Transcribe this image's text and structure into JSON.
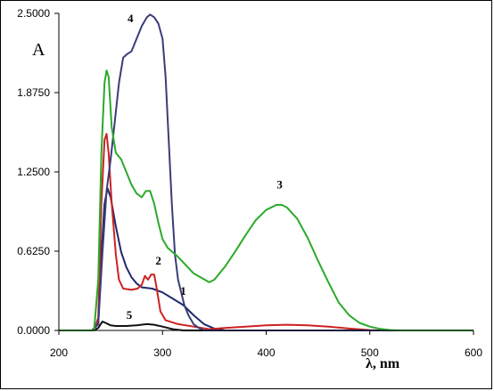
{
  "chart_data": {
    "type": "line",
    "ylabel": "A",
    "xlabel": "λ, nm",
    "xlim": [
      200,
      600
    ],
    "ylim": [
      0,
      2.5
    ],
    "x_ticks": [
      "200",
      "300",
      "400",
      "500",
      "600"
    ],
    "y_ticks": [
      "0.0000",
      "0.6250",
      "1.2500",
      "1.8750",
      "2.5000"
    ],
    "grid": false,
    "series": [
      {
        "name": "1",
        "color": "#1f2a6b",
        "points": [
          [
            200,
            0
          ],
          [
            232,
            0
          ],
          [
            238,
            0.05
          ],
          [
            241,
            0.6
          ],
          [
            244,
            1.0
          ],
          [
            247,
            1.12
          ],
          [
            250,
            1.05
          ],
          [
            255,
            0.82
          ],
          [
            260,
            0.62
          ],
          [
            265,
            0.5
          ],
          [
            270,
            0.42
          ],
          [
            275,
            0.37
          ],
          [
            280,
            0.34
          ],
          [
            290,
            0.33
          ],
          [
            300,
            0.3
          ],
          [
            310,
            0.25
          ],
          [
            320,
            0.2
          ],
          [
            330,
            0.12
          ],
          [
            340,
            0.05
          ],
          [
            350,
            0.015
          ],
          [
            360,
            0
          ],
          [
            600,
            0
          ]
        ]
      },
      {
        "name": "2",
        "color": "#cc2222",
        "points": [
          [
            200,
            0
          ],
          [
            234,
            0
          ],
          [
            238,
            0.1
          ],
          [
            241,
            1.0
          ],
          [
            244,
            1.5
          ],
          [
            246,
            1.55
          ],
          [
            248,
            1.4
          ],
          [
            251,
            1.0
          ],
          [
            255,
            0.6
          ],
          [
            258,
            0.4
          ],
          [
            262,
            0.33
          ],
          [
            270,
            0.32
          ],
          [
            276,
            0.33
          ],
          [
            280,
            0.36
          ],
          [
            283,
            0.43
          ],
          [
            286,
            0.4
          ],
          [
            289,
            0.44
          ],
          [
            292,
            0.44
          ],
          [
            294,
            0.35
          ],
          [
            298,
            0.15
          ],
          [
            303,
            0.08
          ],
          [
            315,
            0.05
          ],
          [
            330,
            0.03
          ],
          [
            345,
            0.01
          ],
          [
            360,
            0.02
          ],
          [
            380,
            0.03
          ],
          [
            400,
            0.04
          ],
          [
            420,
            0.045
          ],
          [
            440,
            0.04
          ],
          [
            460,
            0.03
          ],
          [
            480,
            0.015
          ],
          [
            500,
            0.003
          ],
          [
            510,
            0
          ],
          [
            600,
            0
          ]
        ]
      },
      {
        "name": "3",
        "color": "#2aaa2a",
        "points": [
          [
            200,
            0
          ],
          [
            234,
            0
          ],
          [
            238,
            0.4
          ],
          [
            241,
            1.4
          ],
          [
            244,
            1.95
          ],
          [
            246,
            2.05
          ],
          [
            248,
            2.0
          ],
          [
            251,
            1.6
          ],
          [
            255,
            1.4
          ],
          [
            260,
            1.35
          ],
          [
            265,
            1.25
          ],
          [
            270,
            1.15
          ],
          [
            275,
            1.08
          ],
          [
            280,
            1.05
          ],
          [
            284,
            1.1
          ],
          [
            288,
            1.1
          ],
          [
            292,
            1.0
          ],
          [
            296,
            0.85
          ],
          [
            300,
            0.72
          ],
          [
            305,
            0.65
          ],
          [
            315,
            0.58
          ],
          [
            330,
            0.45
          ],
          [
            345,
            0.38
          ],
          [
            350,
            0.4
          ],
          [
            360,
            0.5
          ],
          [
            370,
            0.62
          ],
          [
            380,
            0.75
          ],
          [
            390,
            0.87
          ],
          [
            400,
            0.95
          ],
          [
            410,
            0.99
          ],
          [
            415,
            0.99
          ],
          [
            420,
            0.97
          ],
          [
            430,
            0.88
          ],
          [
            440,
            0.73
          ],
          [
            450,
            0.55
          ],
          [
            460,
            0.38
          ],
          [
            470,
            0.22
          ],
          [
            480,
            0.12
          ],
          [
            490,
            0.06
          ],
          [
            500,
            0.03
          ],
          [
            510,
            0.012
          ],
          [
            520,
            0.003
          ],
          [
            530,
            0
          ],
          [
            600,
            0
          ]
        ]
      },
      {
        "name": "4",
        "color": "#3a3d7a",
        "points": [
          [
            200,
            0
          ],
          [
            232,
            0
          ],
          [
            238,
            0.05
          ],
          [
            242,
            0.6
          ],
          [
            246,
            1.1
          ],
          [
            250,
            1.35
          ],
          [
            254,
            1.65
          ],
          [
            258,
            1.95
          ],
          [
            262,
            2.15
          ],
          [
            266,
            2.18
          ],
          [
            270,
            2.2
          ],
          [
            275,
            2.3
          ],
          [
            280,
            2.4
          ],
          [
            285,
            2.47
          ],
          [
            288,
            2.49
          ],
          [
            292,
            2.47
          ],
          [
            296,
            2.42
          ],
          [
            300,
            2.3
          ],
          [
            303,
            2.0
          ],
          [
            306,
            1.5
          ],
          [
            309,
            1.0
          ],
          [
            312,
            0.6
          ],
          [
            315,
            0.4
          ],
          [
            318,
            0.3
          ],
          [
            321,
            0.2
          ],
          [
            325,
            0.12
          ],
          [
            330,
            0.05
          ],
          [
            335,
            0.02
          ],
          [
            340,
            0
          ],
          [
            600,
            0
          ]
        ]
      },
      {
        "name": "5",
        "color": "#111111",
        "points": [
          [
            200,
            0
          ],
          [
            234,
            0
          ],
          [
            238,
            0.02
          ],
          [
            242,
            0.07
          ],
          [
            245,
            0.06
          ],
          [
            250,
            0.04
          ],
          [
            255,
            0.035
          ],
          [
            265,
            0.035
          ],
          [
            275,
            0.04
          ],
          [
            285,
            0.05
          ],
          [
            292,
            0.045
          ],
          [
            300,
            0.03
          ],
          [
            310,
            0.01
          ],
          [
            320,
            0
          ],
          [
            600,
            0
          ]
        ]
      }
    ],
    "annotations": [
      {
        "text": "1",
        "x": 320,
        "y": 0.28
      },
      {
        "text": "2",
        "x": 296,
        "y": 0.52
      },
      {
        "text": "3",
        "x": 413,
        "y": 1.12
      },
      {
        "text": "4",
        "x": 269,
        "y": 2.43
      },
      {
        "text": "5",
        "x": 268,
        "y": 0.09
      }
    ]
  }
}
